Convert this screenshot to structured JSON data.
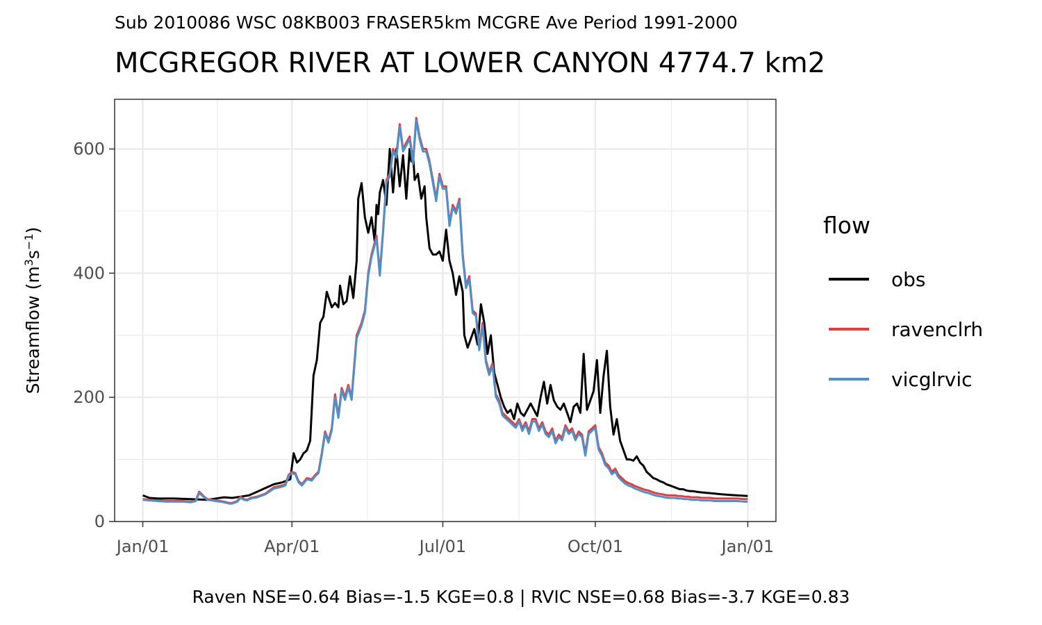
{
  "chart_data": {
    "type": "line",
    "subtitle": "Sub 2010086 WSC 08KB003 FRASER5km MCGRE Ave Period 1991-2000",
    "title": "MCGREGOR RIVER AT LOWER CANYON 4774.7 km2",
    "ylabel_text": "Streamflow (m",
    "ylabel_sup1": "3",
    "ylabel_mid": "s",
    "ylabel_sup2": "−1",
    "ylabel_end": ")",
    "ylim": [
      0,
      680
    ],
    "yticks": [
      0,
      200,
      400,
      600
    ],
    "ytick_labels": [
      "0",
      "200",
      "400",
      "600"
    ],
    "xticks_doy": [
      1,
      91,
      182,
      274,
      366
    ],
    "xtick_labels": [
      "Jan/01",
      "Apr/01",
      "Jul/01",
      "Oct/01",
      "Jan/01"
    ],
    "xlim_doy": [
      -16,
      383
    ],
    "grid": true,
    "legend_title": "flow",
    "legend_position": "right",
    "caption": "Raven NSE=0.64 Bias=-1.5 KGE=0.8 | RVIC NSE=0.68 Bias=-3.7 KGE=0.83",
    "series": [
      {
        "name": "obs",
        "color": "#000000",
        "x_doy": [
          1,
          5,
          10,
          20,
          30,
          40,
          50,
          55,
          60,
          65,
          70,
          75,
          80,
          85,
          88,
          90,
          92,
          94,
          96,
          98,
          99,
          100,
          102,
          104,
          106,
          108,
          110,
          112,
          115,
          117,
          119,
          120,
          122,
          124,
          126,
          128,
          130,
          131,
          133,
          135,
          137,
          139,
          141,
          142,
          143,
          144,
          146,
          148,
          150,
          152,
          154,
          156,
          158,
          160,
          162,
          163,
          164,
          165,
          167,
          169,
          171,
          172,
          174,
          176,
          178,
          180,
          182,
          184,
          186,
          188,
          190,
          192,
          194,
          195,
          197,
          199,
          201,
          203,
          205,
          207,
          209,
          211,
          213,
          215,
          217,
          219,
          221,
          223,
          225,
          227,
          229,
          231,
          233,
          235,
          237,
          239,
          241,
          243,
          245,
          247,
          249,
          251,
          253,
          255,
          257,
          259,
          261,
          263,
          265,
          267,
          269,
          271,
          273,
          275,
          277,
          279,
          281,
          283,
          285,
          287,
          289,
          291,
          293,
          295,
          297,
          299,
          301,
          303,
          305,
          307,
          309,
          311,
          313,
          315,
          317,
          319,
          321,
          323,
          325,
          327,
          329,
          331,
          333,
          335,
          338,
          342,
          346,
          350,
          355,
          360,
          366
        ],
        "values": [
          42,
          38,
          37,
          37,
          36,
          35,
          39,
          38,
          40,
          42,
          48,
          54,
          60,
          63,
          66,
          68,
          110,
          95,
          100,
          110,
          112,
          115,
          130,
          235,
          260,
          320,
          330,
          370,
          345,
          352,
          345,
          380,
          350,
          355,
          395,
          360,
          420,
          520,
          545,
          490,
          465,
          490,
          450,
          510,
          495,
          530,
          550,
          510,
          600,
          530,
          600,
          540,
          590,
          520,
          600,
          580,
          595,
          550,
          560,
          520,
          540,
          490,
          440,
          430,
          430,
          435,
          420,
          470,
          420,
          400,
          365,
          395,
          370,
          300,
          280,
          295,
          310,
          285,
          350,
          320,
          270,
          300,
          240,
          220,
          200,
          185,
          175,
          180,
          165,
          190,
          175,
          170,
          180,
          190,
          180,
          170,
          200,
          225,
          190,
          220,
          195,
          185,
          180,
          190,
          175,
          160,
          185,
          190,
          175,
          270,
          180,
          195,
          210,
          260,
          175,
          235,
          275,
          185,
          140,
          165,
          130,
          115,
          100,
          100,
          98,
          105,
          95,
          90,
          80,
          75,
          70,
          68,
          65,
          63,
          60,
          58,
          56,
          54,
          52,
          52,
          50,
          49,
          49,
          48,
          47,
          46,
          45,
          44,
          43,
          42,
          41
        ]
      },
      {
        "name": "ravenclrh",
        "color": "#E8393B",
        "x_doy": [
          1,
          5,
          10,
          15,
          20,
          25,
          30,
          33,
          35,
          38,
          40,
          45,
          50,
          53,
          55,
          58,
          60,
          62,
          64,
          66,
          70,
          75,
          80,
          85,
          87,
          89,
          91,
          93,
          95,
          97,
          100,
          103,
          105,
          107,
          109,
          111,
          113,
          115,
          117,
          119,
          121,
          123,
          125,
          127,
          130,
          133,
          135,
          137,
          139,
          141,
          142,
          144,
          146,
          148,
          150,
          152,
          154,
          156,
          158,
          160,
          162,
          164,
          166,
          168,
          170,
          172,
          174,
          176,
          178,
          180,
          182,
          184,
          186,
          188,
          190,
          192,
          194,
          196,
          198,
          200,
          202,
          204,
          206,
          208,
          210,
          212,
          214,
          216,
          218,
          220,
          222,
          224,
          226,
          228,
          230,
          232,
          234,
          236,
          238,
          240,
          242,
          244,
          246,
          248,
          250,
          252,
          254,
          256,
          258,
          260,
          262,
          264,
          266,
          268,
          270,
          272,
          274,
          276,
          278,
          280,
          282,
          284,
          286,
          288,
          290,
          292,
          294,
          296,
          298,
          300,
          302,
          304,
          306,
          308,
          310,
          312,
          314,
          316,
          318,
          320,
          322,
          324,
          326,
          328,
          330,
          332,
          334,
          336,
          338,
          340,
          343,
          346,
          350,
          355,
          360,
          364,
          366
        ],
        "values": [
          36,
          35,
          34,
          33,
          33,
          33,
          32,
          34,
          48,
          40,
          36,
          34,
          32,
          30,
          30,
          33,
          40,
          36,
          35,
          38,
          40,
          45,
          55,
          58,
          60,
          75,
          80,
          78,
          65,
          60,
          70,
          68,
          75,
          80,
          110,
          145,
          130,
          150,
          205,
          170,
          215,
          200,
          220,
          200,
          300,
          320,
          340,
          400,
          430,
          450,
          460,
          400,
          470,
          550,
          560,
          600,
          590,
          640,
          600,
          610,
          620,
          580,
          650,
          620,
          600,
          600,
          580,
          550,
          520,
          560,
          540,
          540,
          480,
          510,
          500,
          520,
          430,
          380,
          395,
          340,
          335,
          280,
          320,
          260,
          240,
          255,
          205,
          195,
          175,
          170,
          165,
          160,
          155,
          165,
          150,
          160,
          145,
          165,
          165,
          150,
          160,
          145,
          140,
          150,
          130,
          140,
          135,
          155,
          145,
          150,
          135,
          145,
          140,
          110,
          145,
          150,
          155,
          120,
          110,
          95,
          90,
          80,
          85,
          75,
          70,
          65,
          62,
          60,
          57,
          55,
          53,
          51,
          50,
          48,
          46,
          45,
          44,
          43,
          42,
          42,
          42,
          41,
          41,
          40,
          40,
          39,
          39,
          39,
          38,
          38,
          38,
          37,
          37,
          37,
          37,
          36,
          36
        ]
      },
      {
        "name": "vicglrvic",
        "color": "#4E91C9",
        "x_doy": [
          1,
          5,
          10,
          15,
          20,
          25,
          30,
          33,
          35,
          38,
          40,
          45,
          50,
          53,
          55,
          58,
          60,
          62,
          64,
          66,
          70,
          75,
          80,
          85,
          87,
          89,
          91,
          93,
          95,
          97,
          100,
          103,
          105,
          107,
          109,
          111,
          113,
          115,
          117,
          119,
          121,
          123,
          125,
          127,
          130,
          133,
          135,
          137,
          139,
          141,
          142,
          144,
          146,
          148,
          150,
          152,
          154,
          156,
          158,
          160,
          162,
          164,
          166,
          168,
          170,
          172,
          174,
          176,
          178,
          180,
          182,
          184,
          186,
          188,
          190,
          192,
          194,
          196,
          198,
          200,
          202,
          204,
          206,
          208,
          210,
          212,
          214,
          216,
          218,
          220,
          222,
          224,
          226,
          228,
          230,
          232,
          234,
          236,
          238,
          240,
          242,
          244,
          246,
          248,
          250,
          252,
          254,
          256,
          258,
          260,
          262,
          264,
          266,
          268,
          270,
          272,
          274,
          276,
          278,
          280,
          282,
          284,
          286,
          288,
          290,
          292,
          294,
          296,
          298,
          300,
          302,
          304,
          306,
          308,
          310,
          312,
          314,
          316,
          318,
          320,
          322,
          324,
          326,
          328,
          330,
          332,
          334,
          336,
          338,
          340,
          343,
          346,
          350,
          355,
          360,
          364,
          366
        ],
        "values": [
          35,
          34,
          33,
          32,
          32,
          32,
          31,
          33,
          46,
          39,
          35,
          33,
          31,
          29,
          29,
          32,
          38,
          35,
          34,
          37,
          39,
          44,
          53,
          56,
          58,
          73,
          78,
          76,
          63,
          58,
          68,
          66,
          73,
          78,
          107,
          142,
          127,
          147,
          200,
          167,
          211,
          196,
          216,
          196,
          295,
          316,
          336,
          396,
          426,
          446,
          456,
          396,
          466,
          546,
          556,
          596,
          586,
          636,
          596,
          606,
          616,
          576,
          646,
          616,
          596,
          596,
          576,
          546,
          516,
          556,
          536,
          536,
          476,
          506,
          496,
          516,
          426,
          376,
          391,
          336,
          331,
          276,
          316,
          256,
          236,
          251,
          201,
          191,
          171,
          166,
          161,
          156,
          151,
          161,
          146,
          156,
          141,
          161,
          161,
          146,
          156,
          141,
          136,
          146,
          126,
          136,
          131,
          151,
          141,
          146,
          131,
          141,
          136,
          106,
          141,
          146,
          151,
          116,
          106,
          91,
          86,
          76,
          81,
          71,
          66,
          61,
          58,
          56,
          53,
          51,
          49,
          47,
          46,
          44,
          42,
          41,
          40,
          39,
          38,
          38,
          38,
          37,
          37,
          36,
          36,
          35,
          35,
          35,
          34,
          34,
          34,
          33,
          33,
          33,
          33,
          32,
          32
        ]
      }
    ]
  }
}
